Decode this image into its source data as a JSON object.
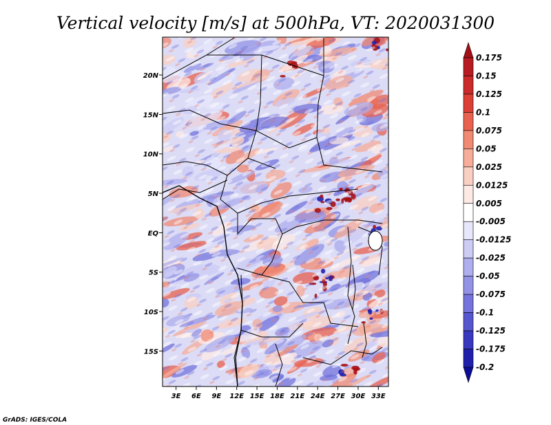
{
  "chart_data": {
    "type": "heatmap",
    "title": "Vertical velocity [m/s] at 500hPa, VT: 2020031300",
    "x_ticks": [
      "3E",
      "6E",
      "9E",
      "12E",
      "15E",
      "18E",
      "21E",
      "24E",
      "27E",
      "30E",
      "33E"
    ],
    "x_values": [
      3,
      6,
      9,
      12,
      15,
      18,
      21,
      24,
      27,
      30,
      33
    ],
    "y_ticks": [
      "20N",
      "15N",
      "10N",
      "5N",
      "EQ",
      "5S",
      "10S",
      "15S"
    ],
    "y_values": [
      20,
      15,
      10,
      5,
      0,
      -5,
      -10,
      -15
    ],
    "xlim": [
      1,
      34.5
    ],
    "ylim": [
      -19.5,
      24.8
    ],
    "colorbar_labels": [
      "0.175",
      "0.15",
      "0.125",
      "0.1",
      "0.075",
      "0.05",
      "0.025",
      "0.0125",
      "0.005",
      "-0.005",
      "-0.0125",
      "-0.025",
      "-0.05",
      "-0.075",
      "-0.1",
      "-0.125",
      "-0.175",
      "-0.2"
    ],
    "colorbar_colors": [
      "#a50f15",
      "#b81c22",
      "#cb2a2a",
      "#dc3f36",
      "#e8624f",
      "#f08a73",
      "#f6ae9a",
      "#fad0c3",
      "#fdeae4",
      "#ffffff",
      "#e7e7fb",
      "#ccccf5",
      "#afafee",
      "#9393e6",
      "#7474dc",
      "#5656cf",
      "#3939c0",
      "#2020ad",
      "#0c0c96"
    ]
  },
  "credit": "GrADS: IGES/COLA"
}
